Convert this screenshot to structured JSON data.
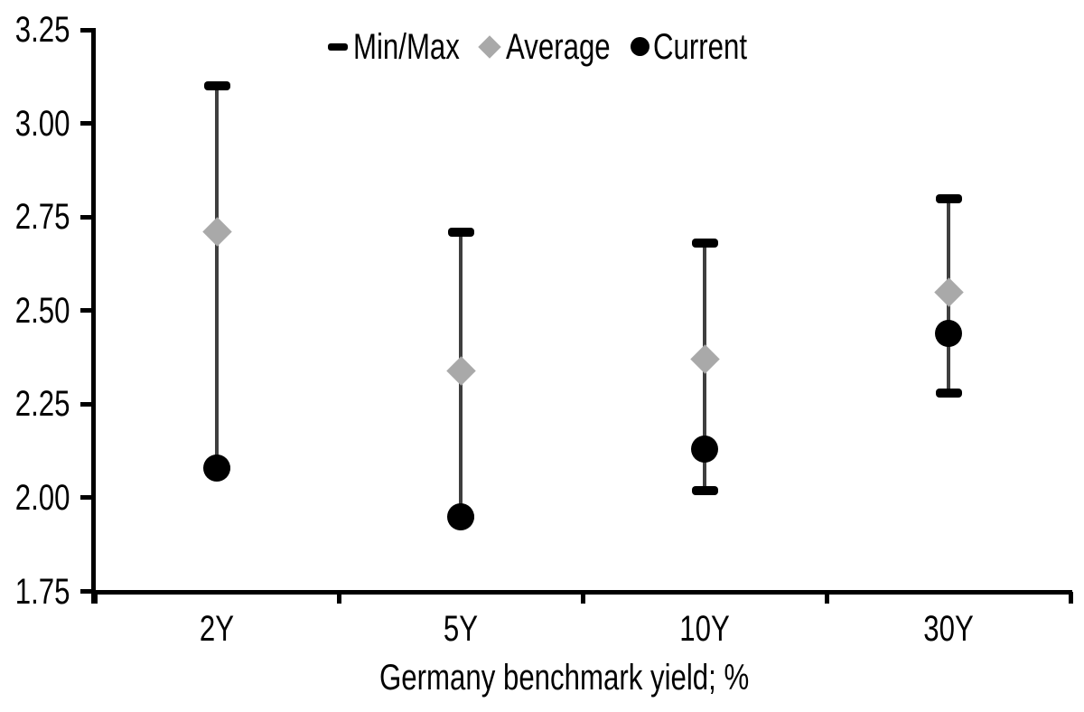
{
  "chart_data": {
    "type": "scatter",
    "subtype": "min-max-range-with-average-and-current",
    "title": "",
    "xlabel": "Germany benchmark yield; %",
    "ylabel": "",
    "categories": [
      "2Y",
      "5Y",
      "10Y",
      "30Y"
    ],
    "ylim": [
      1.75,
      3.25
    ],
    "ytick_interval": 0.25,
    "yticks": [
      3.25,
      3.0,
      2.75,
      2.5,
      2.25,
      2.0,
      1.75
    ],
    "ytick_labels": [
      "3.25",
      "3.00",
      "2.75",
      "2.50",
      "2.25",
      "2.00",
      "1.75"
    ],
    "grid": false,
    "legend_position": "top-center",
    "series": [
      {
        "name": "Min/Max",
        "marker": "dash",
        "color": "#000000",
        "min_values": [
          2.08,
          1.95,
          2.02,
          2.28
        ],
        "max_values": [
          3.1,
          2.71,
          2.68,
          2.8
        ]
      },
      {
        "name": "Average",
        "marker": "diamond",
        "color": "#a9a9a9",
        "values": [
          2.71,
          2.34,
          2.37,
          2.55
        ]
      },
      {
        "name": "Current",
        "marker": "circle",
        "color": "#000000",
        "values": [
          2.08,
          1.95,
          2.13,
          2.44
        ]
      }
    ],
    "colors": {
      "axis": "#000000",
      "text": "#000000",
      "range_line": "#3f3f3f",
      "minmax_marker": "#000000",
      "average_marker": "#a9a9a9",
      "current_marker": "#000000",
      "background": "#ffffff"
    }
  }
}
